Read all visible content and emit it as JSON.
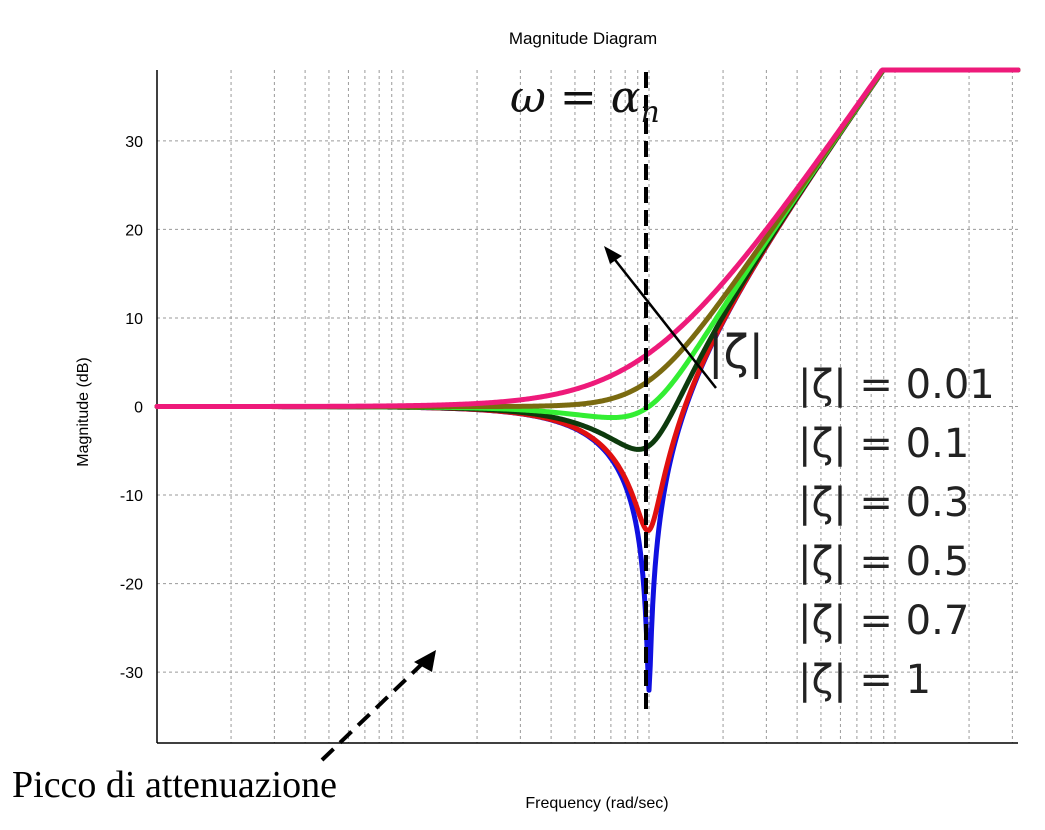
{
  "chart_data": {
    "type": "line",
    "title": "Magnitude Diagram",
    "xlabel": "Frequency (rad/sec)",
    "ylabel": "Magnitude (dB)",
    "x_scale": "log",
    "x_tick_labels": [],
    "xlim_decades": [
      -2,
      1.5
    ],
    "ylim": [
      -38,
      38
    ],
    "yticks": [
      -30,
      -20,
      -10,
      0,
      10,
      20,
      30
    ],
    "grid": true,
    "natural_frequency_line": {
      "x": 1,
      "label": "ω = α_n",
      "style": "dashed"
    },
    "series": [
      {
        "name": "|ζ| = 0.01",
        "zeta": 0.01,
        "color": "#1010e0",
        "peak_db": -34
      },
      {
        "name": "|ζ| = 0.1",
        "zeta": 0.1,
        "color": "#e01010",
        "peak_db": -14
      },
      {
        "name": "|ζ| = 0.3",
        "zeta": 0.3,
        "color": "#0d3a0d",
        "peak_db": -4.5
      },
      {
        "name": "|ζ| = 0.5",
        "zeta": 0.5,
        "color": "#33ee33",
        "peak_db": 0
      },
      {
        "name": "|ζ| = 0.7",
        "zeta": 0.7,
        "color": "#7a6a10",
        "peak_db": 3
      },
      {
        "name": "|ζ| = 1",
        "zeta": 1.0,
        "color": "#ee1a7a",
        "peak_db": 6
      }
    ],
    "arrow_label": "|ζ|",
    "annotation": "Picco di attenuazione"
  },
  "colors": {
    "grid": "#9a9a9a",
    "axis": "#000000",
    "arrow": "#000000"
  }
}
